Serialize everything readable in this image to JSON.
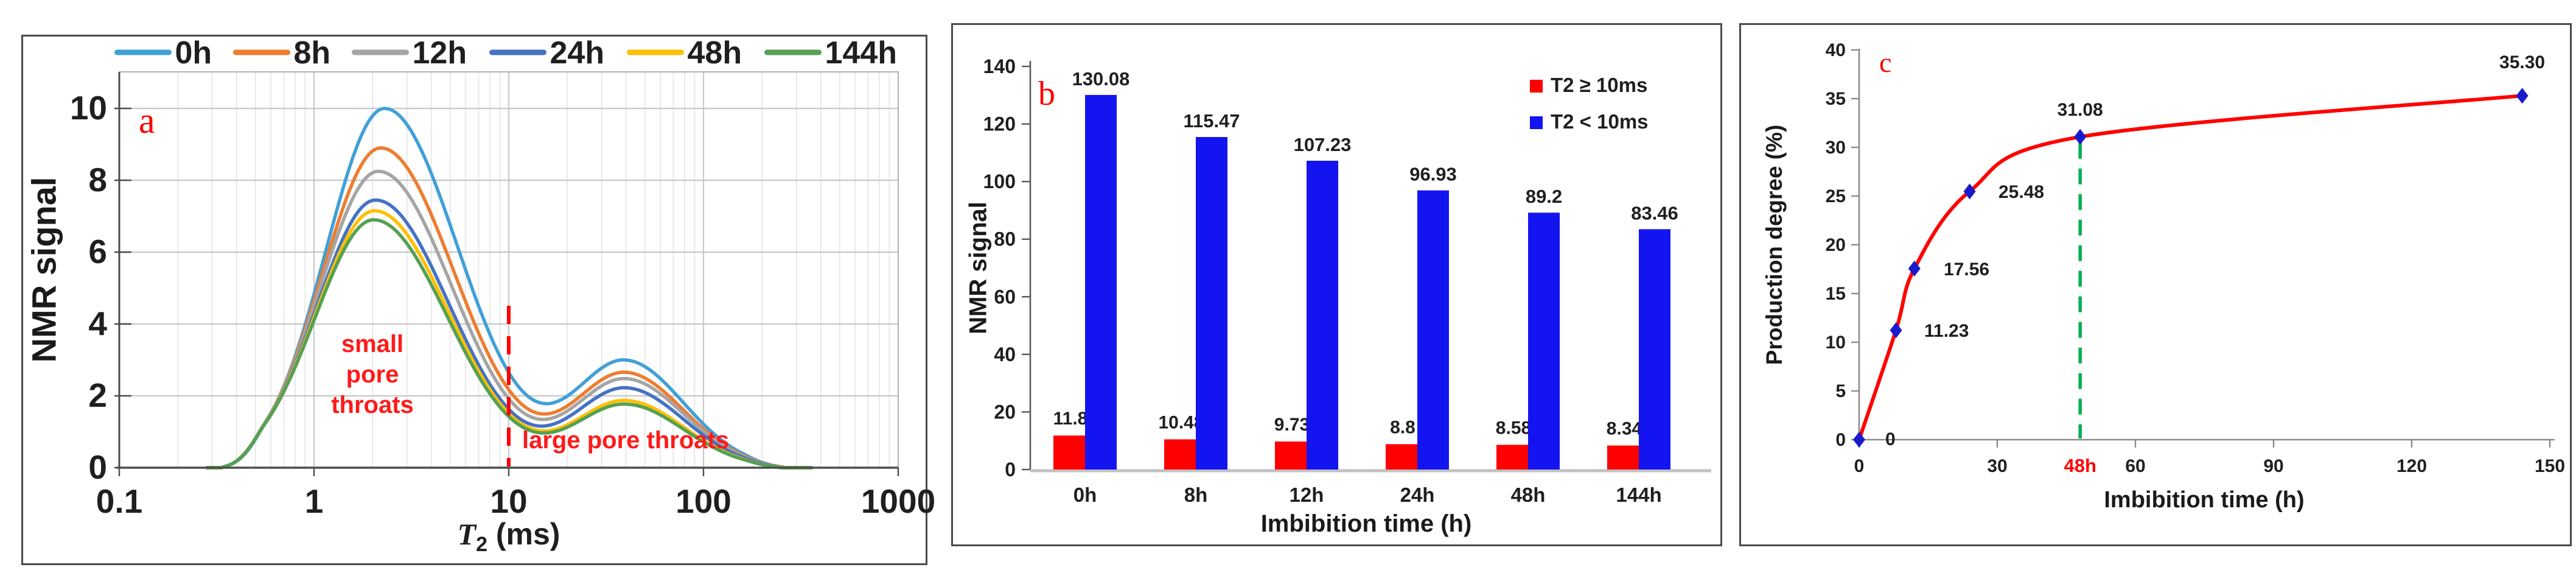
{
  "figure": {
    "description": "Three-panel NMR imbibition experiment figure",
    "panel_letters": {
      "a": "a",
      "b": "b",
      "c": "c"
    }
  },
  "panels": {
    "a": {
      "letter": "a",
      "ylabel": "NMR signal",
      "xlabel_parts": {
        "main": "T",
        "sub": "2",
        "unit": " (ms)"
      },
      "small_pore_note": "small\npore\nthroats",
      "large_pore_note": "large pore throats"
    },
    "b": {
      "letter": "b",
      "ylabel": "NMR signal",
      "xlabel": "Imbibition time (h)"
    },
    "c": {
      "letter": "c",
      "ylabel": "Production degree (%)",
      "xlabel": "Imbibition time (h)"
    }
  },
  "chart_data": [
    {
      "type": "line",
      "panel": "a",
      "title": "",
      "xlabel": "T2 (ms)",
      "ylabel": "NMR signal",
      "x_scale": "log",
      "xlim": [
        0.1,
        1000
      ],
      "ylim": [
        0,
        11
      ],
      "x_ticks": [
        "0.1",
        "1",
        "10",
        "100",
        "1000"
      ],
      "y_ticks": [
        0,
        2,
        4,
        6,
        8,
        10
      ],
      "grid": true,
      "legend_position": "top",
      "curve_span_ms": [
        0.4,
        300
      ],
      "peak1_t2_ms": 2.3,
      "peak2_t2_ms": 40,
      "series": [
        {
          "name": "0h",
          "color": "#41A0D8",
          "peak1": 10.0,
          "peak2": 2.95
        },
        {
          "name": "8h",
          "color": "#ED7D31",
          "peak1": 8.9,
          "peak2": 2.62
        },
        {
          "name": "12h",
          "color": "#A5A5A5",
          "peak1": 8.25,
          "peak2": 2.45
        },
        {
          "name": "24h",
          "color": "#4472C4",
          "peak1": 7.45,
          "peak2": 2.2
        },
        {
          "name": "48h",
          "color": "#FFC000",
          "peak1": 7.15,
          "peak2": 1.85
        },
        {
          "name": "144h",
          "color": "#55A054",
          "peak1": 6.9,
          "peak2": 1.75
        }
      ],
      "annotations": {
        "divider_t2_ms": 10,
        "divider_color": "#FF0000",
        "small_pore": "small pore throats",
        "large_pore": "large pore throats"
      }
    },
    {
      "type": "bar",
      "panel": "b",
      "title": "",
      "xlabel": "Imbibition time (h)",
      "ylabel": "NMR signal",
      "ylim": [
        0,
        140
      ],
      "y_ticks": [
        0,
        20,
        40,
        60,
        80,
        100,
        120,
        140
      ],
      "grid": false,
      "legend_position": "top-right",
      "categories": [
        "0h",
        "8h",
        "12h",
        "24h",
        "48h",
        "144h"
      ],
      "series": [
        {
          "name": "T2 ≥ 10ms",
          "color": "#FF0000",
          "values": [
            11.8,
            10.48,
            9.73,
            8.8,
            8.58,
            8.34
          ],
          "labels": [
            "11.8",
            "10.48",
            "9.73",
            "8.8",
            "8.58",
            "8.34"
          ]
        },
        {
          "name": "T2 < 10ms",
          "color": "#1414F0",
          "values": [
            130.08,
            115.47,
            107.23,
            96.93,
            89.2,
            83.46
          ],
          "labels": [
            "130.08",
            "115.47",
            "107.23",
            "96.93",
            "89.2",
            "83.46"
          ]
        }
      ]
    },
    {
      "type": "line",
      "panel": "c",
      "title": "",
      "xlabel": "Imbibition time (h)",
      "ylabel": "Production degree (%)",
      "xlim": [
        0,
        150
      ],
      "ylim": [
        0,
        40
      ],
      "x_ticks": [
        0,
        30,
        60,
        90,
        120,
        150
      ],
      "y_ticks": [
        0,
        5,
        10,
        15,
        20,
        25,
        30,
        35,
        40
      ],
      "grid": false,
      "line_color": "#FF0000",
      "marker": "diamond",
      "marker_color": "#1A1ACD",
      "x": [
        0,
        8,
        12,
        24,
        48,
        144
      ],
      "y": [
        0,
        11.23,
        17.56,
        25.48,
        31.08,
        35.3
      ],
      "point_labels": [
        "0",
        "11.23",
        "17.56",
        "25.48",
        "31.08",
        "35.30"
      ],
      "guide_line": {
        "x": 48,
        "color": "#00B050",
        "style": "dashed"
      },
      "highlight_x_tick": {
        "text": "48h",
        "x": 48,
        "color": "#FF0000"
      }
    }
  ]
}
